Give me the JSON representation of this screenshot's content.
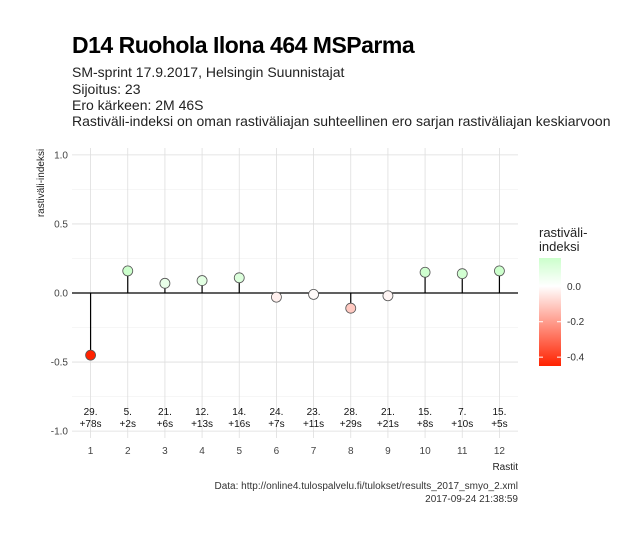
{
  "header": {
    "title": "D14 Ruohola Ilona 464 MSParma",
    "subtitle_1": "SM-sprint 17.9.2017, Helsingin Suunnistajat",
    "subtitle_2": "Sijoitus: 23",
    "subtitle_3": "Ero kärkeen: 2M 46S",
    "subtitle_4": "Rastiväli-indeksi on oman rastiväliajan suhteellinen ero sarjan rastiväliajan keskiarvoon"
  },
  "footer": {
    "source": "Data: http://online4.tulospalvelu.fi/tulokset/results_2017_smyo_2.xml",
    "timestamp": "2017-09-24 21:38:59"
  },
  "chart_data": {
    "type": "scatter",
    "xlabel": "Rastit",
    "ylabel": "rastiväli-indeksi",
    "categories": [
      "1",
      "2",
      "3",
      "4",
      "5",
      "6",
      "7",
      "8",
      "9",
      "10",
      "11",
      "12"
    ],
    "values": [
      -0.45,
      0.16,
      0.07,
      0.09,
      0.11,
      -0.03,
      -0.01,
      -0.11,
      -0.02,
      0.15,
      0.14,
      0.16
    ],
    "ranks": [
      "29.",
      "5.",
      "21.",
      "12.",
      "14.",
      "24.",
      "23.",
      "28.",
      "21.",
      "15.",
      "7.",
      "15."
    ],
    "diffs": [
      "+78s",
      "+2s",
      "+6s",
      "+13s",
      "+16s",
      "+7s",
      "+11s",
      "+29s",
      "+21s",
      "+8s",
      "+10s",
      "+5s"
    ],
    "ylim": [
      -1.05,
      1.05
    ],
    "yticks": [
      -1.0,
      -0.5,
      0.0,
      0.5,
      1.0
    ],
    "ytick_labels": [
      "-1.0",
      "-0.5",
      "0.0",
      "0.5",
      "1.0"
    ],
    "grid": true,
    "legend": {
      "title_line1": "rastiväli-",
      "title_line2": "indeksi",
      "ticks": [
        "0.0",
        "-0.2",
        "-0.4"
      ],
      "position": "right",
      "colors": {
        "high": "#ccffcc",
        "mid": "#ffffff",
        "low": "#ff2200"
      }
    }
  }
}
